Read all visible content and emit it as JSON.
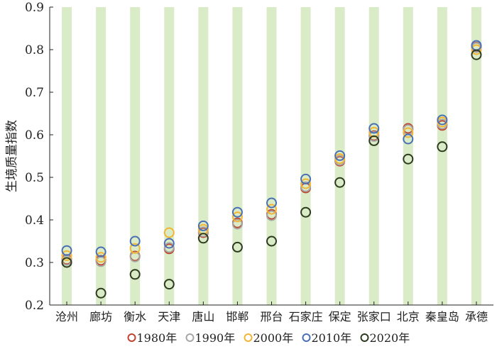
{
  "chart_data": {
    "type": "scatter",
    "ylabel": "生境质量指数",
    "ylim": [
      0.2,
      0.9
    ],
    "yticks": [
      "0.2",
      "0.3",
      "0.4",
      "0.5",
      "0.6",
      "0.7",
      "0.8",
      "0.9"
    ],
    "categories": [
      "沧州",
      "廊坊",
      "衡水",
      "天津",
      "唐山",
      "邯郸",
      "邢台",
      "石家庄",
      "保定",
      "张家口",
      "北京",
      "秦皇岛",
      "承德"
    ],
    "category_bands": true,
    "band_color": "#d9ecc7",
    "grid": false,
    "legend_position": "bottom",
    "series": [
      {
        "name": "1980年",
        "color": "#c0432f",
        "values": [
          0.307,
          0.305,
          0.315,
          0.332,
          0.37,
          0.393,
          0.413,
          0.475,
          0.538,
          0.598,
          0.615,
          0.622,
          0.806
        ]
      },
      {
        "name": "1990年",
        "color": "#a6a6a6",
        "values": [
          0.305,
          0.302,
          0.313,
          0.335,
          0.372,
          0.39,
          0.41,
          0.478,
          0.54,
          0.596,
          0.612,
          0.625,
          0.805
        ]
      },
      {
        "name": "2000年",
        "color": "#f2b632",
        "values": [
          0.316,
          0.312,
          0.333,
          0.37,
          0.378,
          0.407,
          0.425,
          0.485,
          0.544,
          0.606,
          0.605,
          0.63,
          0.8
        ]
      },
      {
        "name": "2010年",
        "color": "#4a6fb5",
        "values": [
          0.328,
          0.325,
          0.35,
          0.345,
          0.386,
          0.418,
          0.44,
          0.496,
          0.551,
          0.615,
          0.59,
          0.635,
          0.81
        ]
      },
      {
        "name": "2020年",
        "color": "#2d3a1f",
        "values": [
          0.3,
          0.228,
          0.272,
          0.249,
          0.357,
          0.336,
          0.35,
          0.418,
          0.488,
          0.586,
          0.543,
          0.572,
          0.788
        ]
      }
    ]
  }
}
